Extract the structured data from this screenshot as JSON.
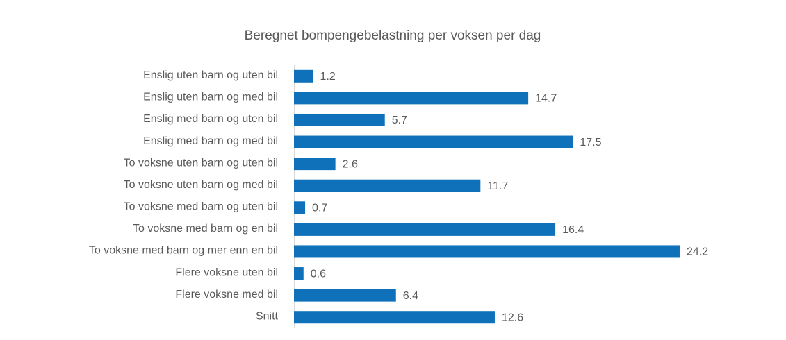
{
  "chart_data": {
    "type": "bar",
    "orientation": "horizontal",
    "title": "Beregnet bompengebelastning per voksen per dag",
    "categories": [
      "Enslig uten barn og uten bil",
      "Enslig uten barn og med bil",
      "Enslig med barn og uten bil",
      "Enslig med barn og med bil",
      "To voksne uten barn og uten bil",
      "To voksne uten barn og med bil",
      "To voksne med barn og uten bil",
      "To voksne med barn og en bil",
      "To voksne med barn og mer enn en bil",
      "Flere voksne uten bil",
      "Flere voksne med bil",
      "Snitt"
    ],
    "values": [
      1.2,
      14.7,
      5.7,
      17.5,
      2.6,
      11.7,
      0.7,
      16.4,
      24.2,
      0.6,
      6.4,
      12.6
    ],
    "color": "#0f71b9",
    "xlim": [
      0,
      30
    ]
  }
}
